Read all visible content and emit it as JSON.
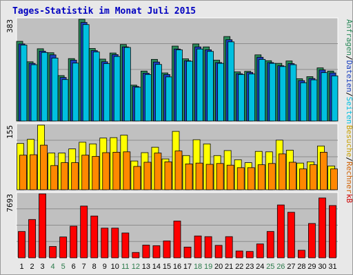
{
  "title": "Tages-Statistik im Monat Juli 2015",
  "colors": {
    "title_text": "#0000c0",
    "panel_bg": "#c0c0c0",
    "grid": "#8c8c8c",
    "weekday_label": "#000000",
    "weekend_label": "#2a7a4a",
    "anfragen": "#2a8a5a",
    "dateien": "#1a40c0",
    "seiten": "#00c0e0",
    "besuche": "#ffff00",
    "rechner": "#ff8800",
    "kb": "#ff0000",
    "besuche_label": "#c8a000",
    "rechner_label": "#d06000",
    "kb_label": "#cc0000"
  },
  "chart_data": [
    {
      "type": "bar",
      "panel": "top",
      "y_max_label": "383",
      "ylim": [
        0,
        383
      ],
      "legend_right": [
        {
          "text": "Anfragen",
          "color_key": "anfragen"
        },
        {
          "text": "/",
          "color_key": "weekday_label"
        },
        {
          "text": "Dateien",
          "color_key": "dateien"
        },
        {
          "text": "/",
          "color_key": "weekday_label"
        },
        {
          "text": "Seiten",
          "color_key": "seiten"
        }
      ],
      "categories": [
        "1",
        "2",
        "3",
        "4",
        "5",
        "6",
        "7",
        "8",
        "9",
        "10",
        "11",
        "12",
        "13",
        "14",
        "15",
        "16",
        "17",
        "18",
        "19",
        "20",
        "21",
        "22",
        "23",
        "24",
        "25",
        "26",
        "27",
        "28",
        "29",
        "30",
        "31"
      ],
      "series": [
        {
          "name": "Anfragen",
          "color_key": "anfragen",
          "values": [
            300,
            223,
            272,
            257,
            171,
            235,
            383,
            273,
            233,
            256,
            288,
            135,
            188,
            232,
            181,
            282,
            234,
            290,
            279,
            229,
            318,
            185,
            187,
            249,
            227,
            217,
            226,
            159,
            167,
            200,
            188
          ]
        },
        {
          "name": "Dateien",
          "color_key": "dateien",
          "values": [
            290,
            217,
            263,
            249,
            164,
            229,
            371,
            265,
            223,
            250,
            279,
            130,
            180,
            222,
            175,
            271,
            227,
            279,
            268,
            220,
            306,
            178,
            183,
            240,
            220,
            208,
            216,
            152,
            160,
            192,
            181
          ]
        },
        {
          "name": "Seiten",
          "color_key": "seiten",
          "values": [
            286,
            212,
            258,
            237,
            156,
            218,
            363,
            260,
            216,
            243,
            277,
            127,
            175,
            213,
            166,
            268,
            225,
            271,
            262,
            217,
            298,
            175,
            177,
            232,
            217,
            205,
            212,
            144,
            155,
            182,
            170
          ]
        }
      ]
    },
    {
      "type": "bar",
      "panel": "middle",
      "y_max_label": "155",
      "ylim": [
        0,
        155
      ],
      "legend_right": [
        {
          "text": "Besuche",
          "color_key": "besuche_label"
        },
        {
          "text": "/",
          "color_key": "weekday_label"
        },
        {
          "text": "Rechner",
          "color_key": "rechner_label"
        }
      ],
      "categories": [
        "1",
        "2",
        "3",
        "4",
        "5",
        "6",
        "7",
        "8",
        "9",
        "10",
        "11",
        "12",
        "13",
        "14",
        "15",
        "16",
        "17",
        "18",
        "19",
        "20",
        "21",
        "22",
        "23",
        "24",
        "25",
        "26",
        "27",
        "28",
        "29",
        "30",
        "31"
      ],
      "series": [
        {
          "name": "Besuche",
          "color_key": "besuche",
          "values": [
            111,
            121,
            155,
            88,
            88,
            98,
            114,
            110,
            124,
            125,
            131,
            69,
            89,
            102,
            74,
            140,
            82,
            120,
            110,
            82,
            94,
            72,
            65,
            92,
            91,
            119,
            95,
            64,
            67,
            105,
            57
          ]
        },
        {
          "name": "Rechner",
          "color_key": "rechner",
          "values": [
            83,
            84,
            107,
            58,
            65,
            65,
            83,
            80,
            89,
            90,
            91,
            56,
            66,
            88,
            67,
            93,
            62,
            64,
            61,
            63,
            59,
            53,
            53,
            60,
            63,
            86,
            66,
            50,
            60,
            90,
            50
          ]
        }
      ]
    },
    {
      "type": "bar",
      "panel": "bottom",
      "y_max_label": "7693",
      "ylim": [
        0,
        7693
      ],
      "legend_right": [
        {
          "text": "kB",
          "color_key": "kb_label"
        }
      ],
      "categories": [
        "1",
        "2",
        "3",
        "4",
        "5",
        "6",
        "7",
        "8",
        "9",
        "10",
        "11",
        "12",
        "13",
        "14",
        "15",
        "16",
        "17",
        "18",
        "19",
        "20",
        "21",
        "22",
        "23",
        "24",
        "25",
        "26",
        "27",
        "28",
        "29",
        "30",
        "31"
      ],
      "series": [
        {
          "name": "kB",
          "color_key": "kb",
          "values": [
            3168,
            4610,
            7693,
            1365,
            2510,
            3808,
            6225,
            5032,
            3572,
            3572,
            2987,
            645,
            1530,
            1460,
            2034,
            4426,
            1295,
            2631,
            2548,
            1500,
            2548,
            824,
            767,
            1671,
            3172,
            6362,
            5480,
            912,
            4132,
            7203,
            6289
          ]
        }
      ]
    }
  ],
  "day_labels": [
    "1",
    "2",
    "3",
    "4",
    "5",
    "6",
    "7",
    "8",
    "9",
    "10",
    "11",
    "12",
    "13",
    "14",
    "15",
    "16",
    "17",
    "18",
    "19",
    "20",
    "21",
    "22",
    "23",
    "24",
    "25",
    "26",
    "27",
    "28",
    "29",
    "30",
    "31"
  ],
  "weekend_days": [
    4,
    5,
    11,
    12,
    18,
    19,
    25,
    26
  ]
}
